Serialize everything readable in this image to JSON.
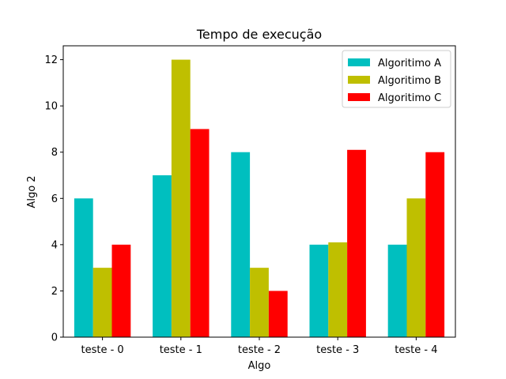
{
  "chart_data": {
    "type": "bar",
    "title": "Tempo de execução",
    "xlabel": "Algo",
    "ylabel": "Algo 2",
    "categories": [
      "teste - 0",
      "teste - 1",
      "teste - 2",
      "teste - 3",
      "teste - 4"
    ],
    "series": [
      {
        "name": "Algoritimo A",
        "color": "#00bfbf",
        "values": [
          6,
          7,
          8,
          4,
          4
        ]
      },
      {
        "name": "Algoritimo B",
        "color": "#bfbf00",
        "values": [
          3,
          12,
          3,
          4.1,
          6
        ]
      },
      {
        "name": "Algoritimo C",
        "color": "#ff0000",
        "values": [
          4,
          9,
          2,
          8.1,
          8
        ]
      }
    ],
    "yticks": [
      "0",
      "2",
      "4",
      "6",
      "8",
      "10",
      "12"
    ],
    "ylim": [
      0,
      12.6
    ],
    "grid": false,
    "legend_position": "top-right"
  }
}
